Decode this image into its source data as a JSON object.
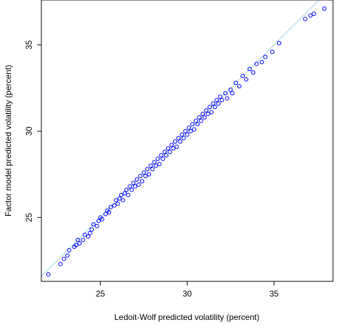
{
  "chart_data": {
    "type": "scatter",
    "title": "",
    "xlabel": "Ledoit-Wolf predicted volatility (percent)",
    "ylabel": "Factor model predicted volatility (percent)",
    "xlim": [
      21.6,
      38.4
    ],
    "ylim": [
      21.3,
      37.6
    ],
    "xticks": [
      25,
      30,
      35
    ],
    "yticks": [
      25,
      30,
      35
    ],
    "grid": false,
    "legend": "none",
    "point_color": "#0000ff",
    "reference_line": {
      "slope": 1,
      "intercept": 0,
      "color": "#9fd4e8"
    },
    "series": [
      {
        "points": [
          [
            22.0,
            21.7
          ],
          [
            22.7,
            22.3
          ],
          [
            22.9,
            22.6
          ],
          [
            23.1,
            22.8
          ],
          [
            23.2,
            23.1
          ],
          [
            23.5,
            23.3
          ],
          [
            23.6,
            23.4
          ],
          [
            23.8,
            23.5
          ],
          [
            23.7,
            23.7
          ],
          [
            24.0,
            23.7
          ],
          [
            24.1,
            24.0
          ],
          [
            24.3,
            23.9
          ],
          [
            24.4,
            24.1
          ],
          [
            24.5,
            24.3
          ],
          [
            24.6,
            24.6
          ],
          [
            24.8,
            24.5
          ],
          [
            24.9,
            24.8
          ],
          [
            25.0,
            25.0
          ],
          [
            25.1,
            24.9
          ],
          [
            25.3,
            25.2
          ],
          [
            25.4,
            25.4
          ],
          [
            25.5,
            25.3
          ],
          [
            25.6,
            25.6
          ],
          [
            25.8,
            25.7
          ],
          [
            25.9,
            26.0
          ],
          [
            26.0,
            25.8
          ],
          [
            26.1,
            26.1
          ],
          [
            26.2,
            26.3
          ],
          [
            26.3,
            26.0
          ],
          [
            26.4,
            26.4
          ],
          [
            26.5,
            26.6
          ],
          [
            26.6,
            26.3
          ],
          [
            26.7,
            26.8
          ],
          [
            26.8,
            26.6
          ],
          [
            26.9,
            27.0
          ],
          [
            27.0,
            26.8
          ],
          [
            27.1,
            27.2
          ],
          [
            27.2,
            26.9
          ],
          [
            27.3,
            27.4
          ],
          [
            27.4,
            27.1
          ],
          [
            27.5,
            27.6
          ],
          [
            27.6,
            27.4
          ],
          [
            27.7,
            27.8
          ],
          [
            27.8,
            27.5
          ],
          [
            27.9,
            28.0
          ],
          [
            28.0,
            27.8
          ],
          [
            28.1,
            28.2
          ],
          [
            28.2,
            28.0
          ],
          [
            28.3,
            28.4
          ],
          [
            28.4,
            28.1
          ],
          [
            28.5,
            28.6
          ],
          [
            28.6,
            28.4
          ],
          [
            28.7,
            28.8
          ],
          [
            28.8,
            28.6
          ],
          [
            28.9,
            29.0
          ],
          [
            29.0,
            28.8
          ],
          [
            29.1,
            29.2
          ],
          [
            29.2,
            29.0
          ],
          [
            29.3,
            29.4
          ],
          [
            29.4,
            29.1
          ],
          [
            29.5,
            29.6
          ],
          [
            29.6,
            29.4
          ],
          [
            29.7,
            29.8
          ],
          [
            29.8,
            29.6
          ],
          [
            29.9,
            30.0
          ],
          [
            30.0,
            29.8
          ],
          [
            30.1,
            30.2
          ],
          [
            30.2,
            30.0
          ],
          [
            30.3,
            30.4
          ],
          [
            30.4,
            30.1
          ],
          [
            30.5,
            30.6
          ],
          [
            30.6,
            30.4
          ],
          [
            30.7,
            30.8
          ],
          [
            30.8,
            30.6
          ],
          [
            30.9,
            31.0
          ],
          [
            31.0,
            30.8
          ],
          [
            31.1,
            31.2
          ],
          [
            31.2,
            31.0
          ],
          [
            31.3,
            31.4
          ],
          [
            31.4,
            31.1
          ],
          [
            31.5,
            31.6
          ],
          [
            31.6,
            31.4
          ],
          [
            31.7,
            31.8
          ],
          [
            31.8,
            31.6
          ],
          [
            31.9,
            32.0
          ],
          [
            32.0,
            31.8
          ],
          [
            32.2,
            32.2
          ],
          [
            32.3,
            31.9
          ],
          [
            32.5,
            32.4
          ],
          [
            32.6,
            32.2
          ],
          [
            32.8,
            32.8
          ],
          [
            33.0,
            32.6
          ],
          [
            33.2,
            33.2
          ],
          [
            33.4,
            33.0
          ],
          [
            33.6,
            33.6
          ],
          [
            33.8,
            33.4
          ],
          [
            34.0,
            33.9
          ],
          [
            34.3,
            34.0
          ],
          [
            34.5,
            34.3
          ],
          [
            34.9,
            34.6
          ],
          [
            35.3,
            35.1
          ],
          [
            36.8,
            36.5
          ],
          [
            37.1,
            36.7
          ],
          [
            37.3,
            36.8
          ],
          [
            37.9,
            37.1
          ]
        ]
      }
    ]
  }
}
